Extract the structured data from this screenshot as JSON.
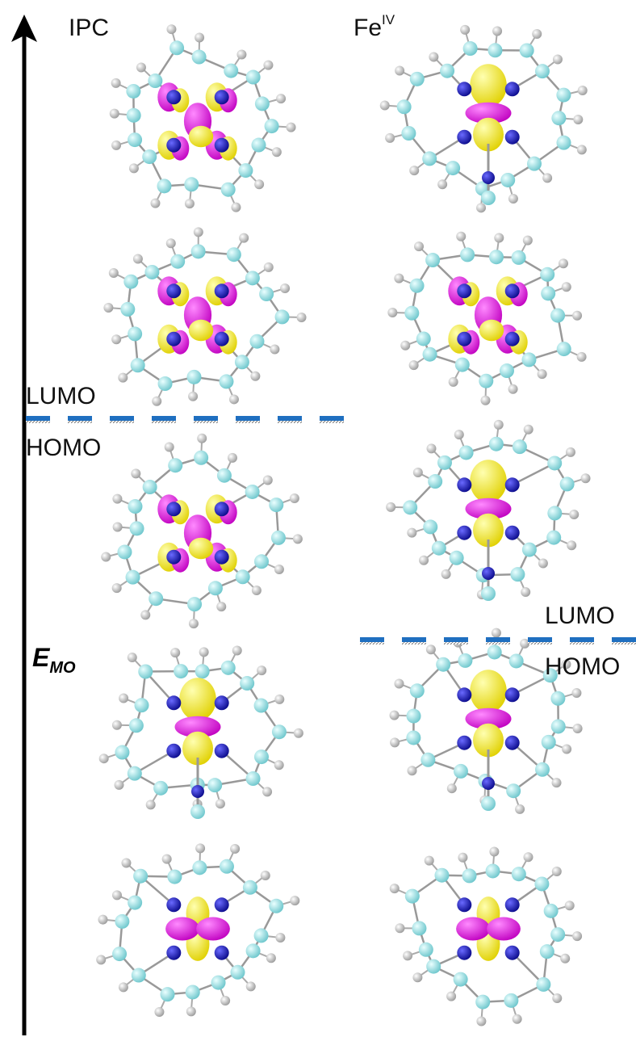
{
  "columns": [
    {
      "label": "IPC"
    },
    {
      "label": "Fe",
      "label_sup": "IV"
    }
  ],
  "axis": {
    "label": "E",
    "label_sub": "MO"
  },
  "gaps": [
    {
      "above": "LUMO",
      "below": "HOMO"
    },
    {
      "above": "LUMO",
      "below": "HOMO"
    }
  ]
}
